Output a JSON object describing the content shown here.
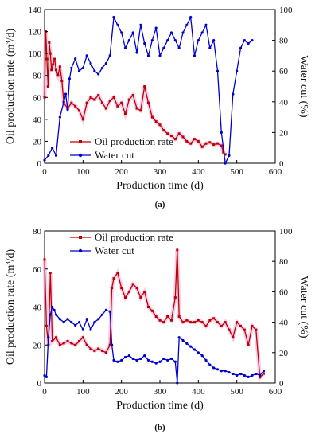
{
  "chart_data": [
    {
      "panel": "(a)",
      "type": "line",
      "xlabel": "Production time (d)",
      "ylabel_left": "Oil production rate (m³/d)",
      "ylabel_right": "Water cut (%)",
      "xlim": [
        0,
        600
      ],
      "ylim_left": [
        0,
        140
      ],
      "ylim_right": [
        0,
        100
      ],
      "xticks": [
        0,
        100,
        200,
        300,
        400,
        500,
        600
      ],
      "yticks_left": [
        0,
        20,
        40,
        60,
        80,
        100,
        120,
        140
      ],
      "yticks_right": [
        0,
        20,
        40,
        60,
        80,
        100
      ],
      "legend_position": "bottom-center",
      "series": [
        {
          "name": "Oil production rate",
          "axis": "left",
          "color": "#c00000",
          "marker": "square",
          "x": [
            0,
            3,
            6,
            9,
            12,
            15,
            18,
            22,
            26,
            30,
            35,
            40,
            45,
            50,
            60,
            70,
            80,
            90,
            100,
            110,
            120,
            130,
            140,
            150,
            160,
            170,
            180,
            190,
            200,
            210,
            220,
            230,
            240,
            250,
            260,
            270,
            280,
            290,
            300,
            310,
            320,
            330,
            340,
            350,
            360,
            370,
            380,
            390,
            400,
            410,
            420,
            430,
            440,
            450,
            460,
            465,
            470
          ],
          "y": [
            60,
            120,
            95,
            70,
            110,
            100,
            85,
            90,
            95,
            85,
            80,
            88,
            75,
            55,
            50,
            55,
            52,
            48,
            40,
            55,
            60,
            58,
            62,
            55,
            50,
            57,
            60,
            52,
            55,
            45,
            58,
            62,
            50,
            48,
            70,
            55,
            42,
            38,
            35,
            30,
            27,
            25,
            22,
            27,
            24,
            20,
            18,
            22,
            20,
            15,
            18,
            19,
            17,
            18,
            16,
            10,
            8
          ]
        },
        {
          "name": "Water cut",
          "axis": "right",
          "color": "#0000cc",
          "marker": "circle",
          "x": [
            0,
            10,
            20,
            30,
            40,
            50,
            55,
            60,
            65,
            70,
            80,
            90,
            100,
            110,
            120,
            130,
            140,
            150,
            160,
            170,
            180,
            190,
            200,
            210,
            220,
            230,
            240,
            250,
            260,
            270,
            280,
            290,
            300,
            310,
            320,
            330,
            340,
            350,
            360,
            370,
            380,
            390,
            400,
            410,
            420,
            430,
            440,
            450,
            460,
            470,
            480,
            490,
            500,
            510,
            520,
            530,
            540
          ],
          "y": [
            2,
            5,
            10,
            5,
            30,
            40,
            45,
            35,
            55,
            62,
            68,
            60,
            62,
            70,
            65,
            60,
            58,
            62,
            65,
            70,
            95,
            90,
            85,
            75,
            80,
            85,
            72,
            90,
            78,
            70,
            80,
            88,
            70,
            75,
            80,
            85,
            80,
            75,
            85,
            90,
            95,
            70,
            80,
            85,
            90,
            75,
            80,
            60,
            20,
            0,
            5,
            45,
            60,
            75,
            80,
            78,
            80
          ]
        }
      ]
    },
    {
      "panel": "(b)",
      "type": "line",
      "xlabel": "Production time (d)",
      "ylabel_left": "Oil production rate (m³/d)",
      "ylabel_right": "Water cut (%)",
      "xlim": [
        0,
        600
      ],
      "ylim_left": [
        0,
        80
      ],
      "ylim_right": [
        0,
        100
      ],
      "xticks": [
        0,
        100,
        200,
        300,
        400,
        500,
        600
      ],
      "yticks_left": [
        0,
        20,
        40,
        60,
        80
      ],
      "yticks_right": [
        0,
        20,
        40,
        60,
        80,
        100
      ],
      "legend_position": "top-center",
      "series": [
        {
          "name": "Oil production rate",
          "axis": "left",
          "color": "#c00000",
          "marker": "square",
          "x": [
            0,
            5,
            10,
            15,
            20,
            30,
            40,
            50,
            60,
            70,
            80,
            90,
            100,
            110,
            120,
            130,
            140,
            150,
            160,
            170,
            175,
            180,
            190,
            200,
            210,
            220,
            230,
            240,
            250,
            260,
            270,
            280,
            290,
            300,
            310,
            320,
            330,
            340,
            345,
            350,
            360,
            370,
            380,
            390,
            400,
            410,
            420,
            430,
            440,
            450,
            460,
            470,
            480,
            490,
            500,
            510,
            520,
            530,
            540,
            550,
            560,
            570
          ],
          "y": [
            65,
            30,
            20,
            58,
            22,
            24,
            20,
            21,
            22,
            21,
            20,
            22,
            24,
            20,
            18,
            17,
            18,
            17,
            16,
            20,
            50,
            55,
            58,
            50,
            45,
            48,
            52,
            50,
            45,
            48,
            40,
            38,
            35,
            33,
            32,
            35,
            33,
            45,
            70,
            35,
            32,
            33,
            32,
            32,
            33,
            32,
            30,
            33,
            34,
            32,
            30,
            32,
            28,
            24,
            32,
            30,
            28,
            20,
            30,
            28,
            3,
            5
          ]
        },
        {
          "name": "Water cut",
          "axis": "right",
          "color": "#0000cc",
          "marker": "circle",
          "x": [
            0,
            5,
            10,
            15,
            20,
            25,
            30,
            40,
            50,
            60,
            70,
            80,
            90,
            100,
            110,
            120,
            130,
            140,
            150,
            160,
            170,
            175,
            180,
            190,
            200,
            210,
            220,
            230,
            240,
            250,
            260,
            270,
            280,
            290,
            300,
            310,
            320,
            330,
            340,
            345,
            350,
            360,
            370,
            380,
            390,
            400,
            410,
            420,
            430,
            440,
            450,
            460,
            470,
            480,
            490,
            500,
            510,
            520,
            530,
            540,
            550,
            560,
            570
          ],
          "y": [
            5,
            4,
            30,
            45,
            50,
            48,
            45,
            42,
            40,
            42,
            40,
            38,
            40,
            35,
            42,
            35,
            40,
            42,
            45,
            48,
            47,
            25,
            15,
            14,
            15,
            17,
            18,
            16,
            15,
            16,
            18,
            15,
            14,
            13,
            14,
            16,
            15,
            16,
            14,
            0,
            30,
            28,
            26,
            24,
            22,
            20,
            18,
            15,
            12,
            10,
            9,
            8,
            8,
            7,
            6,
            5,
            6,
            5,
            4,
            5,
            6,
            5,
            8
          ]
        }
      ]
    }
  ]
}
